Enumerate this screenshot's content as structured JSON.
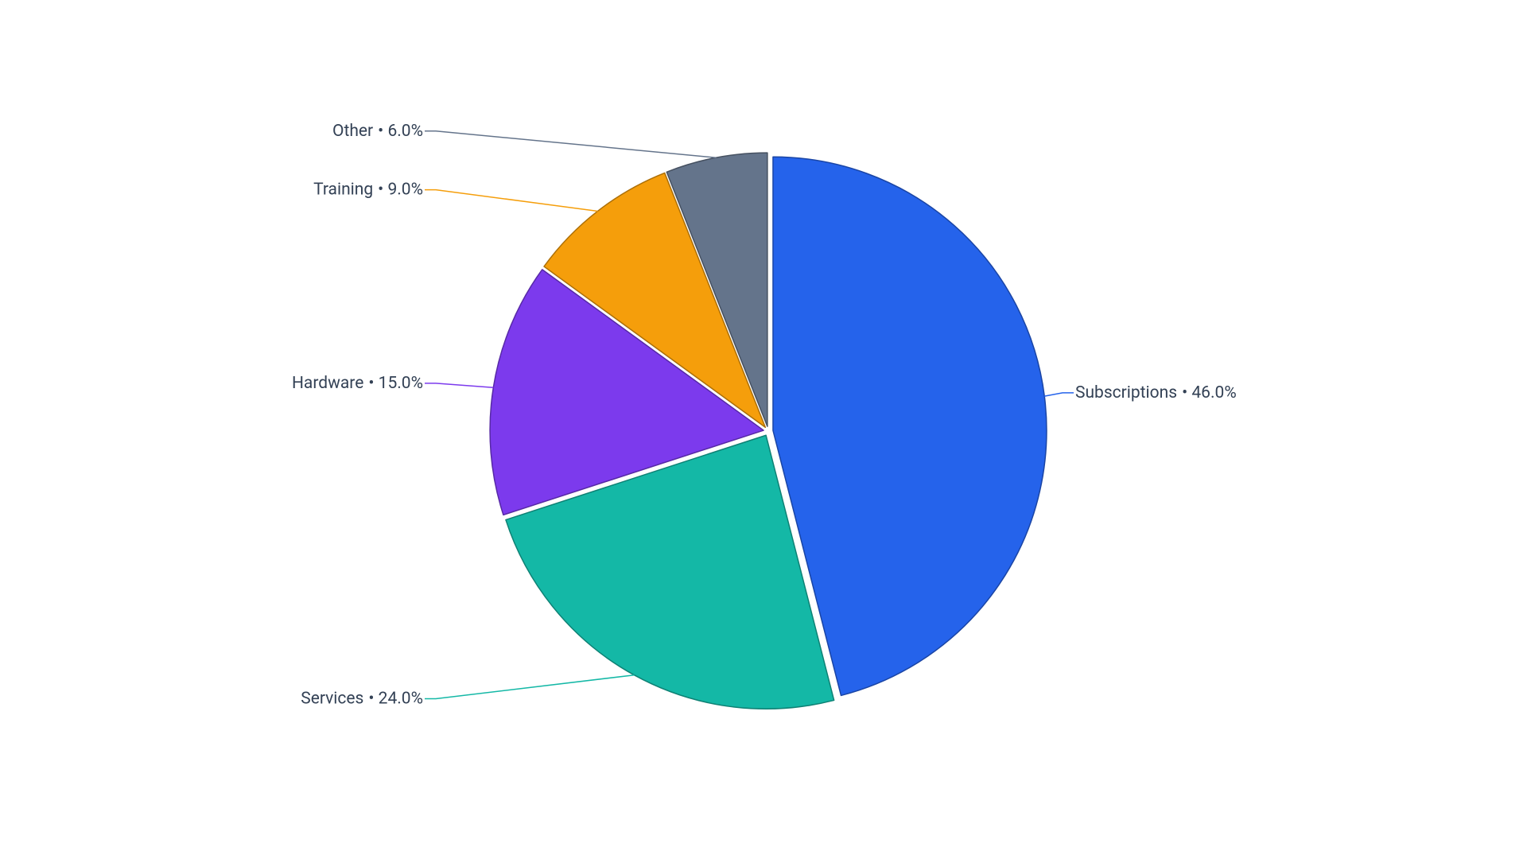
{
  "chart_data": {
    "type": "pie",
    "categories": [
      "Subscriptions",
      "Services",
      "Hardware",
      "Training",
      "Other"
    ],
    "values": [
      46,
      24,
      15,
      9,
      6
    ],
    "value_labels": [
      "• 46.0%",
      "• 24.0%",
      "• 15.0%",
      "• 9.0%",
      "• 6.0%"
    ],
    "colors": [
      "#2563eb",
      "#14b8a6",
      "#7c3aed",
      "#f59e0b",
      "#64748b"
    ]
  }
}
